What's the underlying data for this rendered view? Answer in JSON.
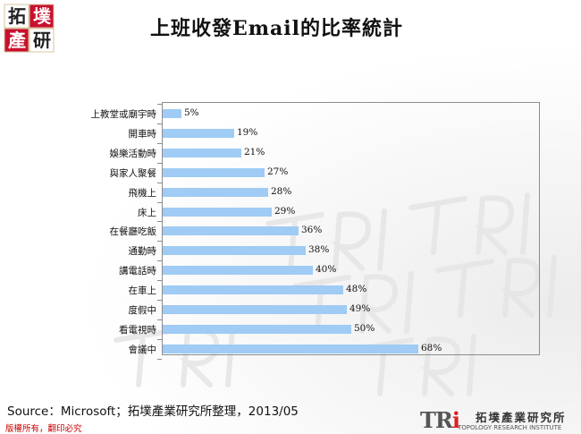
{
  "header": {
    "title": "上班收發Email的比率統計",
    "logo_chars": [
      "拓",
      "墣",
      "產",
      "研"
    ]
  },
  "chart_data": {
    "type": "bar",
    "orientation": "horizontal",
    "categories": [
      "上教堂或廟宇時",
      "開車時",
      "娛樂活動時",
      "與家人聚餐",
      "飛機上",
      "床上",
      "在餐廳吃飯",
      "通勤時",
      "講電話時",
      "在車上",
      "度假中",
      "看電視時",
      "會議中"
    ],
    "values": [
      5,
      19,
      21,
      27,
      28,
      29,
      36,
      38,
      40,
      48,
      49,
      50,
      68
    ],
    "value_labels": [
      "5%",
      "19%",
      "21%",
      "27%",
      "28%",
      "29%",
      "36%",
      "38%",
      "40%",
      "48%",
      "49%",
      "50%",
      "68%"
    ],
    "xlim": [
      0,
      100
    ],
    "grid": false,
    "bar_color": "#9fcbf4"
  },
  "footer": {
    "source": "Source：Microsoft；拓墣產業研究所整理，2013/05",
    "copyright": "版權所有，翻印必究",
    "brand_tri": "TR",
    "brand_i": "i",
    "brand_zh": "拓墣產業研究所",
    "brand_en": "TOPOLOGY RESEARCH INSTITUTE"
  }
}
